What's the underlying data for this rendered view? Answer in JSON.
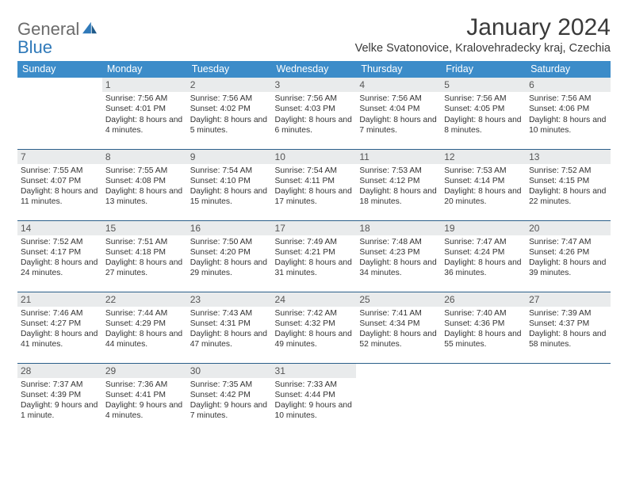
{
  "brand": {
    "word1": "General",
    "word2": "Blue",
    "color1": "#6b6b6b",
    "color2": "#2f79b9"
  },
  "title": "January 2024",
  "location": "Velke Svatonovice, Kralovehradecky kraj, Czechia",
  "colors": {
    "header_bg": "#3c8cc9",
    "header_text": "#ffffff",
    "daynum_bg": "#e9ebec",
    "daynum_text": "#555555",
    "row_border": "#2b5f8a",
    "body_text": "#333333",
    "page_bg": "#ffffff"
  },
  "weekdays": [
    "Sunday",
    "Monday",
    "Tuesday",
    "Wednesday",
    "Thursday",
    "Friday",
    "Saturday"
  ],
  "weeks": [
    [
      null,
      {
        "n": "1",
        "sunrise": "7:56 AM",
        "sunset": "4:01 PM",
        "daylight": "8 hours and 4 minutes."
      },
      {
        "n": "2",
        "sunrise": "7:56 AM",
        "sunset": "4:02 PM",
        "daylight": "8 hours and 5 minutes."
      },
      {
        "n": "3",
        "sunrise": "7:56 AM",
        "sunset": "4:03 PM",
        "daylight": "8 hours and 6 minutes."
      },
      {
        "n": "4",
        "sunrise": "7:56 AM",
        "sunset": "4:04 PM",
        "daylight": "8 hours and 7 minutes."
      },
      {
        "n": "5",
        "sunrise": "7:56 AM",
        "sunset": "4:05 PM",
        "daylight": "8 hours and 8 minutes."
      },
      {
        "n": "6",
        "sunrise": "7:56 AM",
        "sunset": "4:06 PM",
        "daylight": "8 hours and 10 minutes."
      }
    ],
    [
      {
        "n": "7",
        "sunrise": "7:55 AM",
        "sunset": "4:07 PM",
        "daylight": "8 hours and 11 minutes."
      },
      {
        "n": "8",
        "sunrise": "7:55 AM",
        "sunset": "4:08 PM",
        "daylight": "8 hours and 13 minutes."
      },
      {
        "n": "9",
        "sunrise": "7:54 AM",
        "sunset": "4:10 PM",
        "daylight": "8 hours and 15 minutes."
      },
      {
        "n": "10",
        "sunrise": "7:54 AM",
        "sunset": "4:11 PM",
        "daylight": "8 hours and 17 minutes."
      },
      {
        "n": "11",
        "sunrise": "7:53 AM",
        "sunset": "4:12 PM",
        "daylight": "8 hours and 18 minutes."
      },
      {
        "n": "12",
        "sunrise": "7:53 AM",
        "sunset": "4:14 PM",
        "daylight": "8 hours and 20 minutes."
      },
      {
        "n": "13",
        "sunrise": "7:52 AM",
        "sunset": "4:15 PM",
        "daylight": "8 hours and 22 minutes."
      }
    ],
    [
      {
        "n": "14",
        "sunrise": "7:52 AM",
        "sunset": "4:17 PM",
        "daylight": "8 hours and 24 minutes."
      },
      {
        "n": "15",
        "sunrise": "7:51 AM",
        "sunset": "4:18 PM",
        "daylight": "8 hours and 27 minutes."
      },
      {
        "n": "16",
        "sunrise": "7:50 AM",
        "sunset": "4:20 PM",
        "daylight": "8 hours and 29 minutes."
      },
      {
        "n": "17",
        "sunrise": "7:49 AM",
        "sunset": "4:21 PM",
        "daylight": "8 hours and 31 minutes."
      },
      {
        "n": "18",
        "sunrise": "7:48 AM",
        "sunset": "4:23 PM",
        "daylight": "8 hours and 34 minutes."
      },
      {
        "n": "19",
        "sunrise": "7:47 AM",
        "sunset": "4:24 PM",
        "daylight": "8 hours and 36 minutes."
      },
      {
        "n": "20",
        "sunrise": "7:47 AM",
        "sunset": "4:26 PM",
        "daylight": "8 hours and 39 minutes."
      }
    ],
    [
      {
        "n": "21",
        "sunrise": "7:46 AM",
        "sunset": "4:27 PM",
        "daylight": "8 hours and 41 minutes."
      },
      {
        "n": "22",
        "sunrise": "7:44 AM",
        "sunset": "4:29 PM",
        "daylight": "8 hours and 44 minutes."
      },
      {
        "n": "23",
        "sunrise": "7:43 AM",
        "sunset": "4:31 PM",
        "daylight": "8 hours and 47 minutes."
      },
      {
        "n": "24",
        "sunrise": "7:42 AM",
        "sunset": "4:32 PM",
        "daylight": "8 hours and 49 minutes."
      },
      {
        "n": "25",
        "sunrise": "7:41 AM",
        "sunset": "4:34 PM",
        "daylight": "8 hours and 52 minutes."
      },
      {
        "n": "26",
        "sunrise": "7:40 AM",
        "sunset": "4:36 PM",
        "daylight": "8 hours and 55 minutes."
      },
      {
        "n": "27",
        "sunrise": "7:39 AM",
        "sunset": "4:37 PM",
        "daylight": "8 hours and 58 minutes."
      }
    ],
    [
      {
        "n": "28",
        "sunrise": "7:37 AM",
        "sunset": "4:39 PM",
        "daylight": "9 hours and 1 minute."
      },
      {
        "n": "29",
        "sunrise": "7:36 AM",
        "sunset": "4:41 PM",
        "daylight": "9 hours and 4 minutes."
      },
      {
        "n": "30",
        "sunrise": "7:35 AM",
        "sunset": "4:42 PM",
        "daylight": "9 hours and 7 minutes."
      },
      {
        "n": "31",
        "sunrise": "7:33 AM",
        "sunset": "4:44 PM",
        "daylight": "9 hours and 10 minutes."
      },
      null,
      null,
      null
    ]
  ],
  "labels": {
    "sunrise": "Sunrise:",
    "sunset": "Sunset:",
    "daylight": "Daylight:"
  }
}
